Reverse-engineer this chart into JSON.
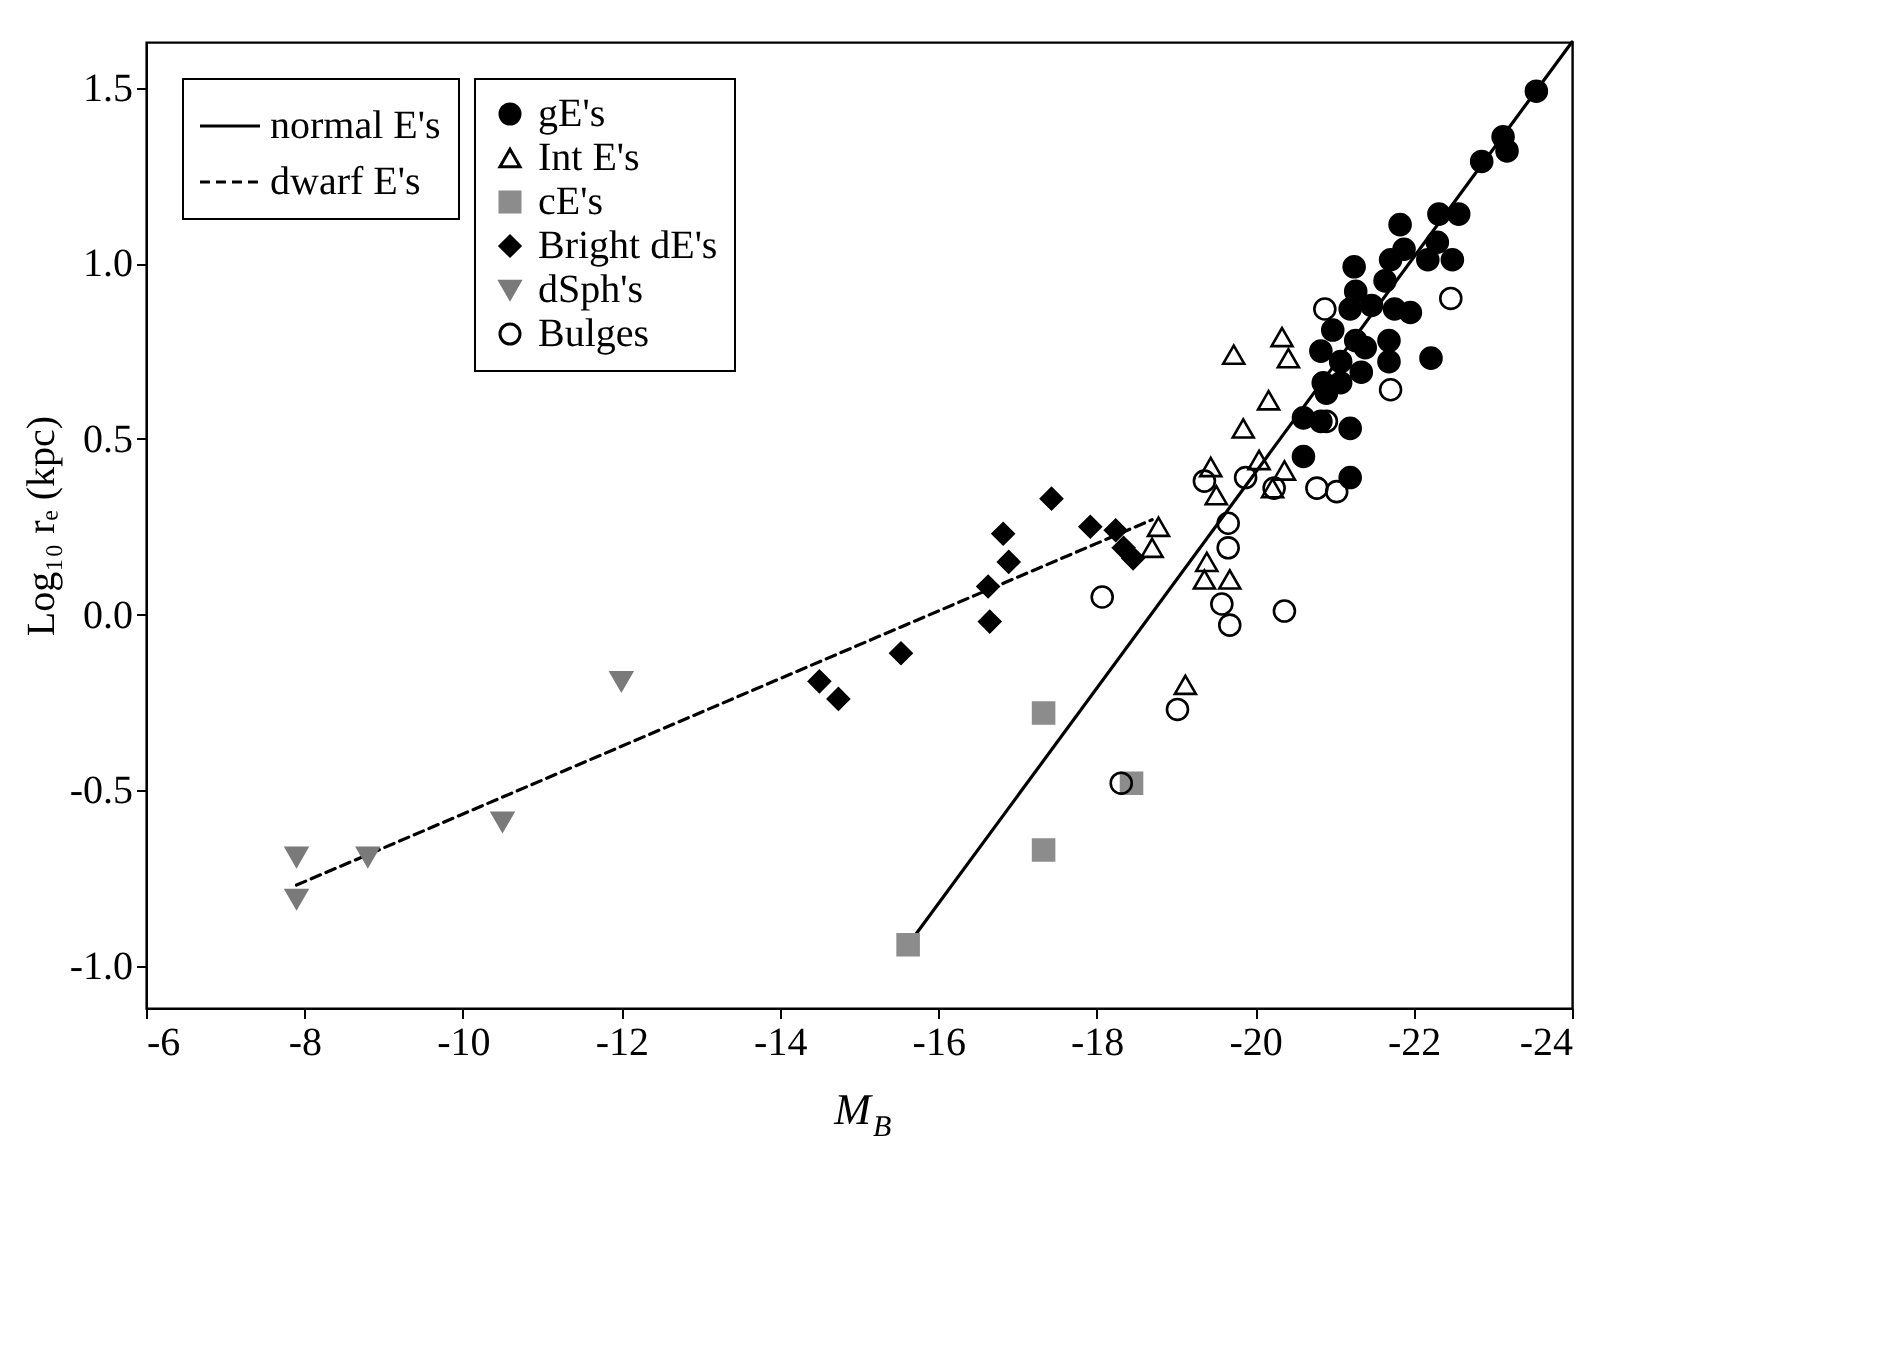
{
  "chart_data": {
    "type": "scatter",
    "xlabel": "M$_{B}$",
    "ylabel": "Log₁₀ rₑ (kpc)",
    "xlim": [
      -6,
      -24
    ],
    "ylim": [
      -1.12,
      1.63
    ],
    "xticks": [
      -6,
      -8,
      -10,
      -12,
      -14,
      -16,
      -18,
      -20,
      -22,
      -24
    ],
    "yticks": [
      {
        "value": -1.0,
        "label": "-1.0"
      },
      {
        "value": -0.5,
        "label": "-0.5"
      },
      {
        "value": 0,
        "label": "0.0"
      },
      {
        "value": 0.5,
        "label": "0.5"
      },
      {
        "value": 1.0,
        "label": "1.0"
      },
      {
        "value": 1.5,
        "label": "1.5"
      }
    ],
    "grid": false,
    "legend": "top left",
    "series": [
      {
        "name": "gE's",
        "marker": "circle",
        "color": "#000000",
        "x": [
          -23.55,
          -23.13,
          -23.18,
          -22.86,
          -22.57,
          -22.32,
          -21.83,
          -21.88,
          -21.71,
          -22.18,
          -22.49,
          -22.3,
          -21.25,
          -21.27,
          -21.64,
          -21.47,
          -21.76,
          -21.96,
          -21.2,
          -20.98,
          -21.27,
          -21.69,
          -21.39,
          -20.83,
          -21.08,
          -21.69,
          -21.34,
          -22.22,
          -20.86,
          -21.08,
          -20.9,
          -20.61,
          -20.83,
          -21.2,
          -20.61,
          -21.2
        ],
        "values": [
          1.49,
          1.36,
          1.32,
          1.29,
          1.14,
          1.14,
          1.11,
          1.04,
          1.01,
          1.01,
          1.01,
          1.06,
          0.99,
          0.92,
          0.95,
          0.88,
          0.87,
          0.86,
          0.87,
          0.81,
          0.78,
          0.78,
          0.76,
          0.75,
          0.72,
          0.72,
          0.69,
          0.73,
          0.66,
          0.66,
          0.63,
          0.56,
          0.55,
          0.53,
          0.45,
          0.39
        ]
      },
      {
        "name": "Int E's",
        "marker": "triangle-open",
        "color": "#000000",
        "x": [
          -19.73,
          -20.34,
          -20.42,
          -20.17,
          -19.85,
          -19.44,
          -20.05,
          -19.51,
          -20.37,
          -20.22,
          -18.78,
          -18.7,
          -19.39,
          -19.36,
          -19.68,
          -19.12
        ],
        "values": [
          0.74,
          0.79,
          0.73,
          0.61,
          0.53,
          0.42,
          0.44,
          0.34,
          0.41,
          0.36,
          0.25,
          0.19,
          0.15,
          0.1,
          0.1,
          -0.2
        ]
      },
      {
        "name": "cE's",
        "marker": "square",
        "color": "#8c8c8c",
        "x": [
          -17.33,
          -18.44,
          -17.33,
          -15.62
        ],
        "values": [
          -0.28,
          -0.48,
          -0.67,
          -0.94
        ]
      },
      {
        "name": "Bright dE's",
        "marker": "diamond",
        "color": "#000000",
        "x": [
          -17.43,
          -16.82,
          -16.89,
          -16.63,
          -16.65,
          -17.92,
          -18.24,
          -18.34,
          -18.46,
          -15.53,
          -14.5,
          -14.74
        ],
        "values": [
          0.33,
          0.23,
          0.15,
          0.08,
          -0.02,
          0.25,
          0.24,
          0.19,
          0.16,
          -0.11,
          -0.19,
          -0.24
        ]
      },
      {
        "name": "dSph's",
        "marker": "triangle-down",
        "color": "#7a7a7a",
        "x": [
          -7.9,
          -7.9,
          -8.8,
          -10.5,
          -12.0
        ],
        "values": [
          -0.69,
          -0.81,
          -0.69,
          -0.59,
          -0.19
        ]
      },
      {
        "name": "Bulges",
        "marker": "circle-open",
        "color": "#000000",
        "x": [
          -20.88,
          -22.47,
          -21.71,
          -20.9,
          -20.78,
          -21.03,
          -19.36,
          -19.88,
          -20.24,
          -19.66,
          -19.66,
          -18.07,
          -19.58,
          -19.68,
          -20.37,
          -19.02,
          -18.31
        ],
        "values": [
          0.87,
          0.9,
          0.64,
          0.55,
          0.36,
          0.35,
          0.38,
          0.39,
          0.36,
          0.26,
          0.19,
          0.05,
          0.03,
          -0.03,
          0.01,
          -0.27,
          -0.48
        ]
      },
      {
        "name": "normal E's",
        "type": "line",
        "line_style": "solid",
        "color": "#000000",
        "x": [
          -15.62,
          -24.0
        ],
        "values": [
          -0.94,
          1.63
        ]
      },
      {
        "name": "dwarf E's",
        "type": "line",
        "line_style": "dashed",
        "color": "#000000",
        "x": [
          -7.9,
          -18.7
        ],
        "values": [
          -0.77,
          0.27
        ]
      }
    ]
  }
}
